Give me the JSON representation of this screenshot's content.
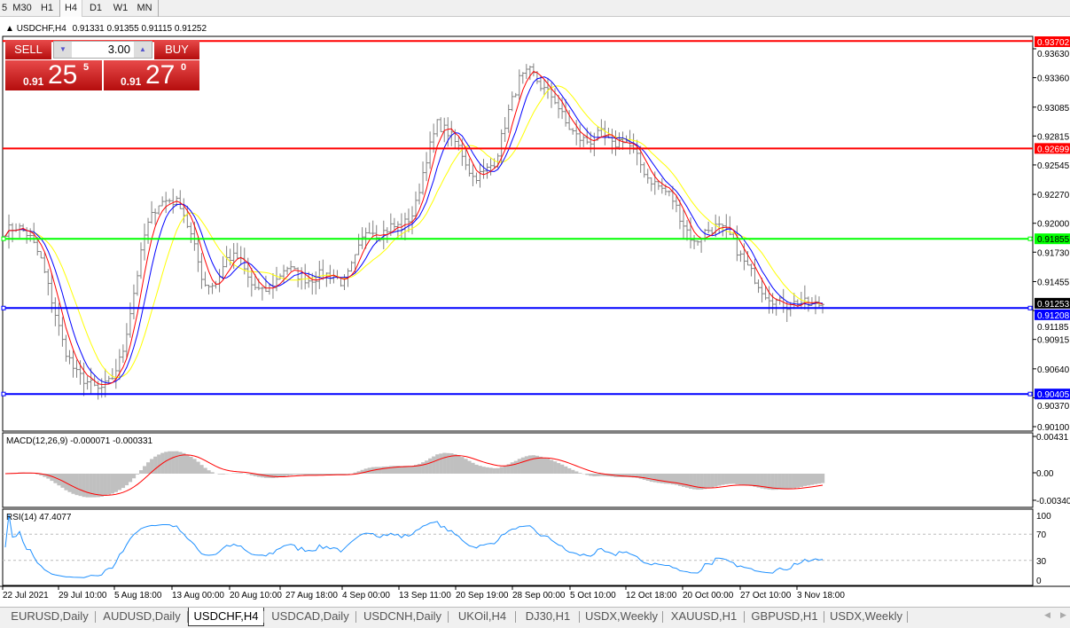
{
  "timeframes": [
    {
      "label": "5"
    },
    {
      "label": "M30"
    },
    {
      "label": "H1"
    },
    {
      "label": "H4",
      "active": true
    },
    {
      "label": "D1"
    },
    {
      "label": "W1"
    },
    {
      "label": "MN"
    }
  ],
  "header": {
    "symbol": "USDCHF,H4",
    "ohlc": "0.91331 0.91355 0.91115 0.91252"
  },
  "trade_panel": {
    "sell_label": "SELL",
    "buy_label": "BUY",
    "lot": "3.00",
    "sell_prefix": "0.91",
    "sell_big": "25",
    "sell_sup": "5",
    "buy_prefix": "0.91",
    "buy_big": "27",
    "buy_sup": "0",
    "color": "#d42020"
  },
  "levels": [
    {
      "price": "0.93702",
      "color": "#ff0000"
    },
    {
      "price": "0.92699",
      "color": "#ff0000"
    },
    {
      "price": "0.91855",
      "color": "#00ff00"
    },
    {
      "price": "0.91208",
      "color": "#0000ff"
    },
    {
      "price": "0.90405",
      "color": "#0000ff"
    }
  ],
  "price_axis": [
    "0.93630",
    "0.93360",
    "0.93085",
    "0.92815",
    "0.92545",
    "0.92270",
    "0.92000",
    "0.91730",
    "0.91455",
    "0.91185",
    "0.90915",
    "0.90640",
    "0.90370",
    "0.90100"
  ],
  "current_price": "0.91253",
  "macd": {
    "label": "MACD(12,26,9) -0.000071 -0.000331",
    "axis": [
      "0.00431",
      "0.00",
      "-0.003405"
    ]
  },
  "rsi": {
    "label": "RSI(14) 47.4077",
    "axis": [
      "100",
      "70",
      "30",
      "0"
    ]
  },
  "time_axis": [
    "22 Jul 2021",
    "29 Jul 10:00",
    "5 Aug 18:00",
    "13 Aug 00:00",
    "20 Aug 10:00",
    "27 Aug 18:00",
    "4 Sep 00:00",
    "13 Sep 11:00",
    "20 Sep 19:00",
    "28 Sep 00:00",
    "5 Oct 10:00",
    "12 Oct 18:00",
    "20 Oct 00:00",
    "27 Oct 10:00",
    "3 Nov 18:00"
  ],
  "chart_data": {
    "type": "candlestick",
    "title": "USDCHF,H4",
    "price_range": [
      0.901,
      0.9375
    ],
    "closes": [
      0.9193,
      0.9197,
      0.9189,
      0.9168,
      0.9127,
      0.9085,
      0.906,
      0.9052,
      0.9044,
      0.9052,
      0.9077,
      0.9135,
      0.9193,
      0.9218,
      0.9222,
      0.9218,
      0.9185,
      0.9143,
      0.9143,
      0.9168,
      0.9168,
      0.9143,
      0.9135,
      0.9143,
      0.916,
      0.9152,
      0.9147,
      0.9152,
      0.9152,
      0.9143,
      0.9168,
      0.9197,
      0.9189,
      0.9197,
      0.9197,
      0.921,
      0.9259,
      0.9293,
      0.9284,
      0.9268,
      0.9243,
      0.9247,
      0.9259,
      0.9301,
      0.9334,
      0.9342,
      0.9326,
      0.9317,
      0.9293,
      0.928,
      0.9276,
      0.9284,
      0.9272,
      0.928,
      0.9263,
      0.9243,
      0.9234,
      0.9226,
      0.9201,
      0.9181,
      0.9193,
      0.9197,
      0.9189,
      0.9168,
      0.9152,
      0.9135,
      0.9127,
      0.9123,
      0.9127,
      0.9123,
      0.9125
    ],
    "ma_colors": {
      "fast": "#ff0000",
      "mid": "#0000ff",
      "slow": "#ffff00"
    },
    "bar_color": "#808080",
    "rsi_color": "#1e90ff",
    "macd_hist_color": "#c0c0c0",
    "macd_signal_color": "#ff0000"
  },
  "tabs": [
    {
      "label": "EURUSD,Daily"
    },
    {
      "label": "AUDUSD,Daily"
    },
    {
      "label": "USDCHF,H4",
      "active": true
    },
    {
      "label": "USDCAD,Daily"
    },
    {
      "label": "USDCNH,Daily"
    },
    {
      "label": "UKOil,H4"
    },
    {
      "label": "DJ30,H1"
    },
    {
      "label": "USDX,Weekly"
    },
    {
      "label": "XAUUSD,H1"
    },
    {
      "label": "GBPUSD,H1"
    },
    {
      "label": "USDX,Weekly"
    }
  ]
}
